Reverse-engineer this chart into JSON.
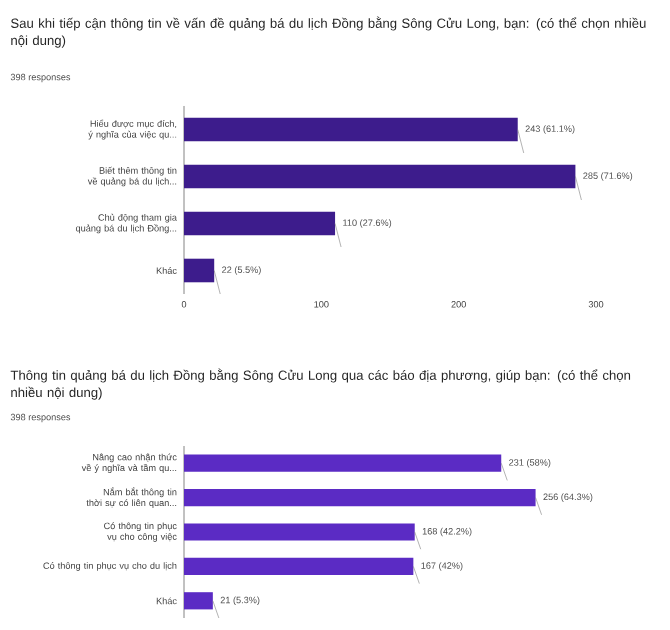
{
  "chart_data": [
    {
      "type": "bar",
      "orientation": "horizontal",
      "title": "Sau khi tiếp cận thông tin về vấn đề quảng bá du lịch Đồng bằng Sông Cửu Long, bạn: (có thể chọn nhiều nội dung)",
      "annotations": [
        "398 responses"
      ],
      "categories": [
        "Hiểu được mục đích, ý nghĩa của việc qu...",
        "Biết thêm thông tin về quảng bá du lịch...",
        "Chủ động tham gia quảng bá du lịch Đồng...",
        "Khác"
      ],
      "values": [
        243,
        285,
        110,
        22
      ],
      "value_labels": [
        "243 (61.1%)",
        "285 (71.6%)",
        "110 (27.6%)",
        "22 (5.5%)"
      ],
      "color": "#3d1c8c",
      "xlim": [
        0,
        300
      ],
      "xticks": [
        0,
        100,
        200,
        300
      ]
    },
    {
      "type": "bar",
      "orientation": "horizontal",
      "title": "Thông tin quảng bá du lịch Đồng bằng Sông Cửu Long qua các báo địa phương, giúp bạn: (có thể chọn nhiều nội dung)",
      "annotations": [
        "398 responses"
      ],
      "categories": [
        "Nâng cao nhận thức về ý nghĩa và tầm qu...",
        "Nắm bắt thông tin thời sự có liên quan...",
        "Có thông tin phục vụ cho công việc",
        "Có thông tin phục vụ cho du lịch",
        "Khác"
      ],
      "values": [
        231,
        256,
        168,
        167,
        21
      ],
      "value_labels": [
        "231 (58%)",
        "256 (64.3%)",
        "168 (42.2%)",
        "167 (42%)",
        "21 (5.3%)"
      ],
      "color": "#5b2bc4",
      "xlim": [
        0,
        300
      ],
      "tick_labels": "y"
    }
  ]
}
